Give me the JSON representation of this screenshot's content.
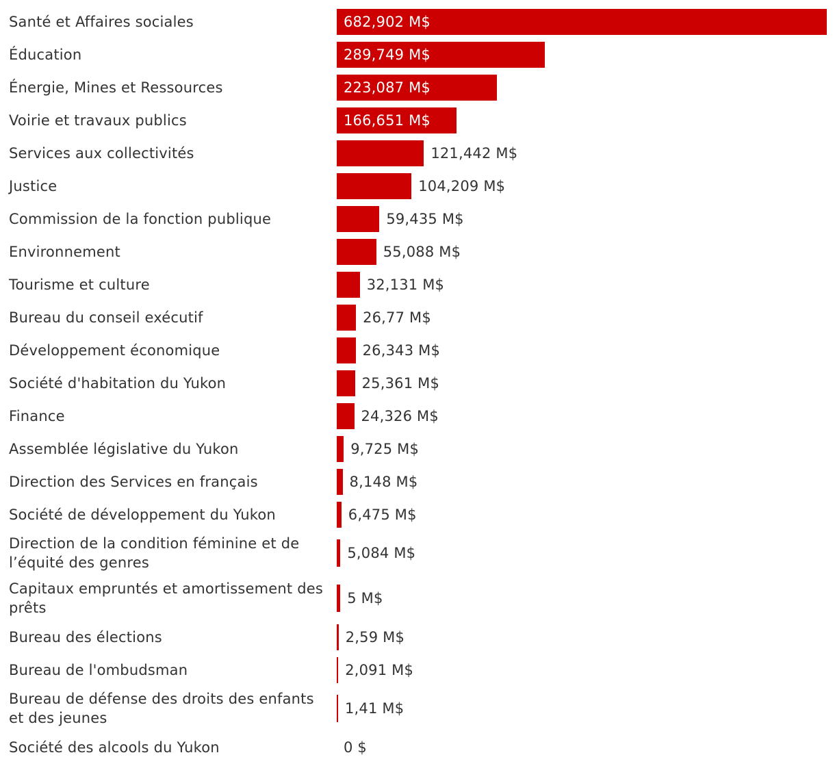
{
  "chart_data": {
    "type": "bar",
    "orientation": "horizontal",
    "bar_color": "#cc0000",
    "value_text_inside_color": "#ffffff",
    "value_text_outside_color": "#333333",
    "grid": false,
    "legend": false,
    "categories": [
      "Santé et Affaires sociales",
      "Éducation",
      "Énergie, Mines et Ressources",
      "Voirie et travaux publics",
      "Services aux collectivités",
      "Justice",
      "Commission de la fonction publique",
      "Environnement",
      "Tourisme et culture",
      "Bureau du conseil exécutif",
      "Développement économique",
      "Société d'habitation du Yukon",
      "Finance",
      "Assemblée législative du Yukon",
      "Direction des Services en français",
      "Société de développement du Yukon",
      "Direction de la condition féminine et de l’équité des genres",
      "Capitaux empruntés et amortissement des prêts",
      "Bureau des élections",
      "Bureau de l'ombudsman",
      "Bureau de défense des droits des enfants et des jeunes",
      "Société des alcools du Yukon"
    ],
    "values": [
      682.902,
      289.749,
      223.087,
      166.651,
      121.442,
      104.209,
      59.435,
      55.088,
      32.131,
      26.77,
      26.343,
      25.361,
      24.326,
      9.725,
      8.148,
      6.475,
      5.084,
      5,
      2.59,
      2.091,
      1.41,
      0
    ],
    "value_labels": [
      "682,902 M$",
      "289,749 M$",
      "223,087 M$",
      "166,651 M$",
      "121,442 M$",
      "104,209 M$",
      "59,435 M$",
      "55,088 M$",
      "32,131 M$",
      "26,77 M$",
      "26,343 M$",
      "25,361 M$",
      "24,326 M$",
      "9,725 M$",
      "8,148 M$",
      "6,475 M$",
      "5,084 M$",
      "5 M$",
      "2,59 M$",
      "2,091 M$",
      "1,41 M$",
      "0 $"
    ],
    "xlim": [
      0,
      682.902
    ]
  }
}
